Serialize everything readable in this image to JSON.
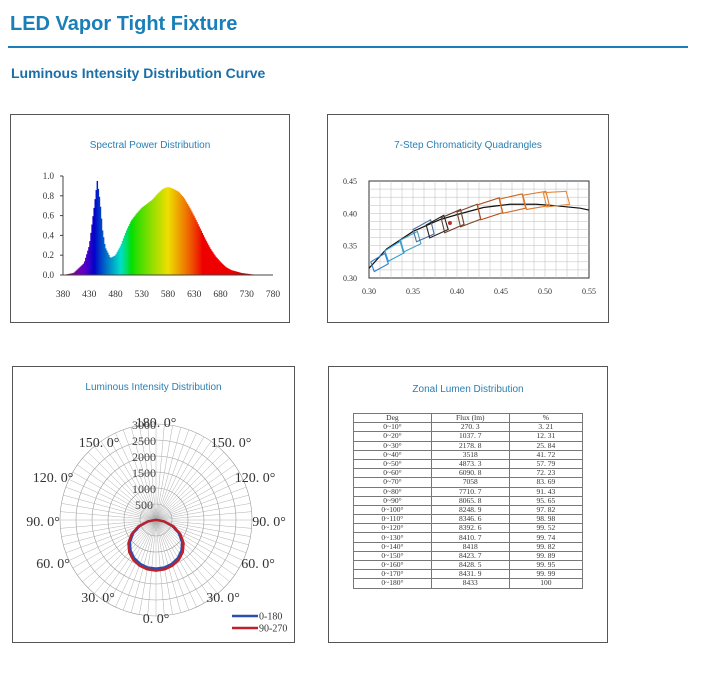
{
  "header": {
    "title": "LED Vapor Tight Fixture",
    "subtitle": "Luminous Intensity Distribution Curve"
  },
  "chart_data": [
    {
      "type": "area",
      "title": "Spectral Power Distribution",
      "x": [
        380,
        400,
        420,
        430,
        440,
        445,
        450,
        455,
        460,
        470,
        480,
        490,
        500,
        510,
        520,
        530,
        540,
        550,
        560,
        570,
        580,
        590,
        600,
        610,
        620,
        630,
        640,
        650,
        660,
        670,
        680,
        690,
        700,
        720,
        740,
        760,
        780
      ],
      "y": [
        0,
        0.02,
        0.12,
        0.3,
        0.72,
        0.95,
        0.75,
        0.45,
        0.28,
        0.17,
        0.2,
        0.3,
        0.44,
        0.55,
        0.62,
        0.68,
        0.72,
        0.76,
        0.82,
        0.87,
        0.89,
        0.87,
        0.84,
        0.78,
        0.69,
        0.59,
        0.48,
        0.37,
        0.27,
        0.19,
        0.13,
        0.08,
        0.05,
        0.02,
        0.006,
        0.002,
        0
      ],
      "x_ticks": [
        "380",
        "430",
        "480",
        "530",
        "580",
        "630",
        "680",
        "730",
        "780"
      ],
      "y_ticks": [
        "0.0",
        "0.2",
        "0.4",
        "0.6",
        "0.8",
        "1.0"
      ],
      "xlim": [
        380,
        780
      ],
      "ylim": [
        0,
        1.0
      ]
    },
    {
      "type": "scatter",
      "title": "7-Step Chromaticity Quadrangles",
      "x_ticks": [
        "0.30",
        "0.35",
        "0.40",
        "0.45",
        "0.50",
        "0.55"
      ],
      "y_ticks": [
        "0.30",
        "0.35",
        "0.40",
        "0.45"
      ],
      "xlim": [
        0.3,
        0.55
      ],
      "ylim": [
        0.3,
        0.45
      ],
      "locus": [
        [
          0.3,
          0.315
        ],
        [
          0.32,
          0.345
        ],
        [
          0.35,
          0.372
        ],
        [
          0.38,
          0.39
        ],
        [
          0.4,
          0.398
        ],
        [
          0.43,
          0.409
        ],
        [
          0.46,
          0.414
        ],
        [
          0.49,
          0.414
        ],
        [
          0.51,
          0.412
        ],
        [
          0.54,
          0.408
        ],
        [
          0.55,
          0.405
        ]
      ],
      "quadrangles": [
        {
          "color": "#2f7fd0",
          "points": [
            [
              0.302,
              0.325
            ],
            [
              0.318,
              0.338
            ],
            [
              0.322,
              0.322
            ],
            [
              0.306,
              0.31
            ]
          ]
        },
        {
          "color": "#2f9fd8",
          "points": [
            [
              0.318,
              0.342
            ],
            [
              0.336,
              0.357
            ],
            [
              0.34,
              0.339
            ],
            [
              0.322,
              0.326
            ]
          ]
        },
        {
          "color": "#3fa0c0",
          "points": [
            [
              0.335,
              0.358
            ],
            [
              0.355,
              0.372
            ],
            [
              0.359,
              0.353
            ],
            [
              0.339,
              0.34
            ]
          ]
        },
        {
          "color": "#4a6fa0",
          "points": [
            [
              0.35,
              0.375
            ],
            [
              0.37,
              0.39
            ],
            [
              0.374,
              0.368
            ],
            [
              0.354,
              0.356
            ]
          ]
        },
        {
          "color": "#222222",
          "points": [
            [
              0.365,
              0.382
            ],
            [
              0.385,
              0.397
            ],
            [
              0.39,
              0.375
            ],
            [
              0.369,
              0.362
            ]
          ]
        },
        {
          "color": "#6a3a2a",
          "points": [
            [
              0.382,
              0.393
            ],
            [
              0.404,
              0.406
            ],
            [
              0.408,
              0.383
            ],
            [
              0.386,
              0.37
            ]
          ]
        },
        {
          "color": "#7a4a2a",
          "points": [
            [
              0.4,
              0.402
            ],
            [
              0.423,
              0.414
            ],
            [
              0.427,
              0.391
            ],
            [
              0.404,
              0.379
            ]
          ]
        },
        {
          "color": "#b05020",
          "points": [
            [
              0.423,
              0.413
            ],
            [
              0.448,
              0.424
            ],
            [
              0.452,
              0.401
            ],
            [
              0.427,
              0.39
            ]
          ]
        },
        {
          "color": "#d06a20",
          "points": [
            [
              0.448,
              0.422
            ],
            [
              0.474,
              0.43
            ],
            [
              0.478,
              0.408
            ],
            [
              0.452,
              0.4
            ]
          ]
        },
        {
          "color": "#e07a30",
          "points": [
            [
              0.475,
              0.428
            ],
            [
              0.501,
              0.434
            ],
            [
              0.505,
              0.412
            ],
            [
              0.479,
              0.406
            ]
          ]
        },
        {
          "color": "#e88a3a",
          "points": [
            [
              0.498,
              0.432
            ],
            [
              0.524,
              0.434
            ],
            [
              0.528,
              0.414
            ],
            [
              0.502,
              0.41
            ]
          ]
        }
      ],
      "marker": [
        0.392,
        0.385
      ]
    },
    {
      "type": "polar",
      "title": "Luminous Intensity Distribution",
      "angle_labels": [
        "180. 0°",
        "150. 0°",
        "150. 0°",
        "120. 0°",
        "120. 0°",
        "90. 0°",
        "90. 0°",
        "60. 0°",
        "60. 0°",
        "30. 0°",
        "30. 0°",
        "0. 0°"
      ],
      "radial_labels": [
        "3000",
        "2500",
        "2000",
        "1500",
        "1000",
        "500"
      ],
      "rmax": 3000,
      "series": [
        {
          "name": "0-180",
          "color": "#2a4fb0",
          "angles": [
            0,
            10,
            20,
            30,
            40,
            50,
            60,
            70,
            80,
            90
          ],
          "values": [
            1520,
            1505,
            1455,
            1370,
            1240,
            1060,
            820,
            540,
            240,
            25
          ]
        },
        {
          "name": "90-270",
          "color": "#c0202a",
          "angles": [
            0,
            10,
            20,
            30,
            40,
            50,
            60,
            70,
            80,
            90
          ],
          "values": [
            1580,
            1565,
            1515,
            1430,
            1305,
            1125,
            880,
            590,
            265,
            30
          ]
        }
      ]
    },
    {
      "type": "table",
      "title": "Zonal Lumen Distribution",
      "columns": [
        "Deg",
        "Flux (lm)",
        "%"
      ],
      "rows": [
        [
          "0~10°",
          "270. 3",
          "3. 21"
        ],
        [
          "0~20°",
          "1037. 7",
          "12. 31"
        ],
        [
          "0~30°",
          "2178. 8",
          "25. 84"
        ],
        [
          "0~40°",
          "3518",
          "41. 72"
        ],
        [
          "0~50°",
          "4873. 3",
          "57. 79"
        ],
        [
          "0~60°",
          "6090. 8",
          "72. 23"
        ],
        [
          "0~70°",
          "7058",
          "83. 69"
        ],
        [
          "0~80°",
          "7710. 7",
          "91. 43"
        ],
        [
          "0~90°",
          "8065. 8",
          "95. 65"
        ],
        [
          "0~100°",
          "8248. 9",
          "97. 82"
        ],
        [
          "0~110°",
          "8346. 6",
          "98. 98"
        ],
        [
          "0~120°",
          "8392. 6",
          "99. 52"
        ],
        [
          "0~130°",
          "8410. 7",
          "99. 74"
        ],
        [
          "0~140°",
          "8418",
          "99. 82"
        ],
        [
          "0~150°",
          "8423. 7",
          "99. 89"
        ],
        [
          "0~160°",
          "8428. 5",
          "99. 95"
        ],
        [
          "0~170°",
          "8431. 9",
          "99. 99"
        ],
        [
          "0~180°",
          "8433",
          "100"
        ]
      ]
    }
  ]
}
